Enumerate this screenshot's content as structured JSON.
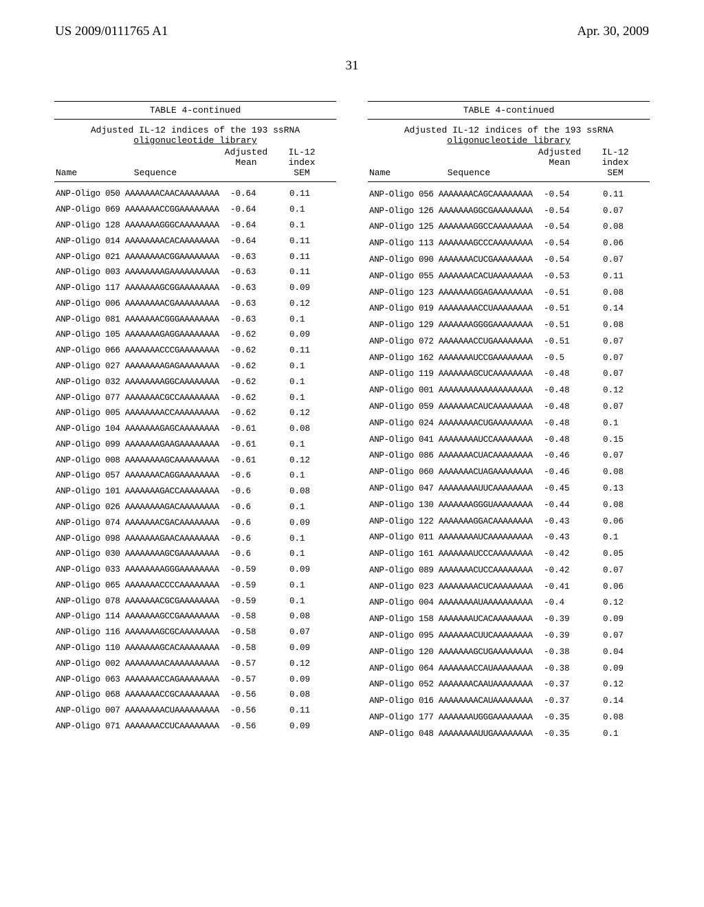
{
  "header": {
    "left": "US 2009/0111765 A1",
    "right": "Apr. 30, 2009",
    "page": "31"
  },
  "table": {
    "title": "TABLE 4-continued",
    "subtitle1": "Adjusted IL-12 indices of the 193 ssRNA",
    "subtitle2": "oligonucleotide library",
    "col_headers": {
      "name": "Name",
      "sequence": "Sequence",
      "adjusted": "Adjusted\nMean",
      "il12": "IL-12\nindex\nSEM"
    }
  },
  "left_rows": [
    {
      "n": "ANP-Oligo 050 AAAAAAACAACAAAAAAAA",
      "a": "-0.64",
      "i": "0.11"
    },
    {
      "n": "ANP-Oligo 069 AAAAAAACCGGAAAAAAAA",
      "a": "-0.64",
      "i": "0.1"
    },
    {
      "n": "ANP-Oligo 128 AAAAAAAGGGCAAAAAAAA",
      "a": "-0.64",
      "i": "0.1"
    },
    {
      "n": "ANP-Oligo 014 AAAAAAAACACAAAAAAAA",
      "a": "-0.64",
      "i": "0.11"
    },
    {
      "n": "ANP-Oligo 021 AAAAAAAACGGAAAAAAAA",
      "a": "-0.63",
      "i": "0.11"
    },
    {
      "n": "ANP-Oligo 003 AAAAAAAAGAAAAAAAAAA",
      "a": "-0.63",
      "i": "0.11"
    },
    {
      "n": "ANP-Oligo 117 AAAAAAAGCGGAAAAAAAA",
      "a": "-0.63",
      "i": "0.09"
    },
    {
      "n": "ANP-Oligo 006 AAAAAAAACGAAAAAAAAA",
      "a": "-0.63",
      "i": "0.12"
    },
    {
      "n": "ANP-Oligo 081 AAAAAAACGGGAAAAAAAA",
      "a": "-0.63",
      "i": "0.1"
    },
    {
      "n": "ANP-Oligo 105 AAAAAAAGAGGAAAAAAAA",
      "a": "-0.62",
      "i": "0.09"
    },
    {
      "n": "ANP-Oligo 066 AAAAAAACCCGAAAAAAAA",
      "a": "-0.62",
      "i": "0.11"
    },
    {
      "n": "ANP-Oligo 027 AAAAAAAAGAGAAAAAAAA",
      "a": "-0.62",
      "i": "0.1"
    },
    {
      "n": "ANP-Oligo 032 AAAAAAAAGGCAAAAAAAA",
      "a": "-0.62",
      "i": "0.1"
    },
    {
      "n": "ANP-Oligo 077 AAAAAAACGCCAAAAAAAA",
      "a": "-0.62",
      "i": "0.1"
    },
    {
      "n": "ANP-Oligo 005 AAAAAAAACCAAAAAAAAA",
      "a": "-0.62",
      "i": "0.12"
    },
    {
      "n": "ANP-Oligo 104 AAAAAAAGAGCAAAAAAAA",
      "a": "-0.61",
      "i": "0.08"
    },
    {
      "n": "ANP-Oligo 099 AAAAAAAGAAGAAAAAAAA",
      "a": "-0.61",
      "i": "0.1"
    },
    {
      "n": "ANP-Oligo 008 AAAAAAAAGCAAAAAAAAA",
      "a": "-0.61",
      "i": "0.12"
    },
    {
      "n": "ANP-Oligo 057 AAAAAAACAGGAAAAAAAA",
      "a": "-0.6",
      "i": "0.1"
    },
    {
      "n": "ANP-Oligo 101 AAAAAAAGACCAAAAAAAA",
      "a": "-0.6",
      "i": "0.08"
    },
    {
      "n": "ANP-Oligo 026 AAAAAAAAGACAAAAAAAA",
      "a": "-0.6",
      "i": "0.1"
    },
    {
      "n": "ANP-Oligo 074 AAAAAAACGACAAAAAAAA",
      "a": "-0.6",
      "i": "0.09"
    },
    {
      "n": "ANP-Oligo 098 AAAAAAAGAACAAAAAAAA",
      "a": "-0.6",
      "i": "0.1"
    },
    {
      "n": "ANP-Oligo 030 AAAAAAAAGCGAAAAAAAA",
      "a": "-0.6",
      "i": "0.1"
    },
    {
      "n": "ANP-Oligo 033 AAAAAAAAGGGAAAAAAAA",
      "a": "-0.59",
      "i": "0.09"
    },
    {
      "n": "ANP-Oligo 065 AAAAAAACCCCAAAAAAAA",
      "a": "-0.59",
      "i": "0.1"
    },
    {
      "n": "ANP-Oligo 078 AAAAAAACGCGAAAAAAAA",
      "a": "-0.59",
      "i": "0.1"
    },
    {
      "n": "ANP-Oligo 114 AAAAAAAGCCGAAAAAAAA",
      "a": "-0.58",
      "i": "0.08"
    },
    {
      "n": "ANP-Oligo 116 AAAAAAAGCGCAAAAAAAA",
      "a": "-0.58",
      "i": "0.07"
    },
    {
      "n": "ANP-Oligo 110 AAAAAAAGCACAAAAAAAA",
      "a": "-0.58",
      "i": "0.09"
    },
    {
      "n": "ANP-Oligo 002 AAAAAAAACAAAAAAAAAA",
      "a": "-0.57",
      "i": "0.12"
    },
    {
      "n": "ANP-Oligo 063 AAAAAAACCAGAAAAAAAA",
      "a": "-0.57",
      "i": "0.09"
    },
    {
      "n": "ANP-Oligo 068 AAAAAAACCGCAAAAAAAA",
      "a": "-0.56",
      "i": "0.08"
    },
    {
      "n": "ANP-Oligo 007 AAAAAAAACUAAAAAAAAA",
      "a": "-0.56",
      "i": "0.11"
    },
    {
      "n": "ANP-Oligo 071 AAAAAAACCUCAAAAAAAA",
      "a": "-0.56",
      "i": "0.09"
    }
  ],
  "right_rows": [
    {
      "n": "ANP-Oligo 056 AAAAAAACAGCAAAAAAAA",
      "a": "-0.54",
      "i": "0.11"
    },
    {
      "n": "ANP-Oligo 126 AAAAAAAGGCGAAAAAAAA",
      "a": "-0.54",
      "i": "0.07"
    },
    {
      "n": "ANP-Oligo 125 AAAAAAAGGCCAAAAAAAA",
      "a": "-0.54",
      "i": "0.08"
    },
    {
      "n": "ANP-Oligo 113 AAAAAAAGCCCAAAAAAAA",
      "a": "-0.54",
      "i": "0.06"
    },
    {
      "n": "ANP-Oligo 090 AAAAAAACUCGAAAAAAAA",
      "a": "-0.54",
      "i": "0.07"
    },
    {
      "n": "ANP-Oligo 055 AAAAAAACACUAAAAAAAA",
      "a": "-0.53",
      "i": "0.11"
    },
    {
      "n": "ANP-Oligo 123 AAAAAAAGGAGAAAAAAAA",
      "a": "-0.51",
      "i": "0.08"
    },
    {
      "n": "ANP-Oligo 019 AAAAAAAACCUAAAAAAAA",
      "a": "-0.51",
      "i": "0.14"
    },
    {
      "n": "ANP-Oligo 129 AAAAAAAGGGGAAAAAAAA",
      "a": "-0.51",
      "i": "0.08"
    },
    {
      "n": "ANP-Oligo 072 AAAAAAACCUGAAAAAAAA",
      "a": "-0.51",
      "i": "0.07"
    },
    {
      "n": "ANP-Oligo 162 AAAAAAAUCCGAAAAAAAA",
      "a": "-0.5",
      "i": "0.07"
    },
    {
      "n": "ANP-Oligo 119 AAAAAAAGCUCAAAAAAAA",
      "a": "-0.48",
      "i": "0.07"
    },
    {
      "n": "ANP-Oligo 001 AAAAAAAAAAAAAAAAAAA",
      "a": "-0.48",
      "i": "0.12"
    },
    {
      "n": "ANP-Oligo 059 AAAAAAACAUCAAAAAAAA",
      "a": "-0.48",
      "i": "0.07"
    },
    {
      "n": "ANP-Oligo 024 AAAAAAAACUGAAAAAAAA",
      "a": "-0.48",
      "i": "0.1"
    },
    {
      "n": "ANP-Oligo 041 AAAAAAAAUCCAAAAAAAA",
      "a": "-0.48",
      "i": "0.15"
    },
    {
      "n": "ANP-Oligo 086 AAAAAAACUACAAAAAAAA",
      "a": "-0.46",
      "i": "0.07"
    },
    {
      "n": "ANP-Oligo 060 AAAAAAACUAGAAAAAAAA",
      "a": "-0.46",
      "i": "0.08"
    },
    {
      "n": "ANP-Oligo 047 AAAAAAAAUUCAAAAAAAA",
      "a": "-0.45",
      "i": "0.13"
    },
    {
      "n": "ANP-Oligo 130 AAAAAAAGGGUAAAAAAAA",
      "a": "-0.44",
      "i": "0.08"
    },
    {
      "n": "ANP-Oligo 122 AAAAAAAGGACAAAAAAAA",
      "a": "-0.43",
      "i": "0.06"
    },
    {
      "n": "ANP-Oligo 011 AAAAAAAAUCAAAAAAAAA",
      "a": "-0.43",
      "i": "0.1"
    },
    {
      "n": "ANP-Oligo 161 AAAAAAAUCCCAAAAAAAA",
      "a": "-0.42",
      "i": "0.05"
    },
    {
      "n": "ANP-Oligo 089 AAAAAAACUCCAAAAAAAA",
      "a": "-0.42",
      "i": "0.07"
    },
    {
      "n": "ANP-Oligo 023 AAAAAAAACUCAAAAAAAA",
      "a": "-0.41",
      "i": "0.06"
    },
    {
      "n": "ANP-Oligo 004 AAAAAAAAUAAAAAAAAAA",
      "a": "-0.4",
      "i": "0.12"
    },
    {
      "n": "ANP-Oligo 158 AAAAAAAUCACAAAAAAAA",
      "a": "-0.39",
      "i": "0.09"
    },
    {
      "n": "ANP-Oligo 095 AAAAAAACUUCAAAAAAAA",
      "a": "-0.39",
      "i": "0.07"
    },
    {
      "n": "ANP-Oligo 120 AAAAAAAGCUGAAAAAAAA",
      "a": "-0.38",
      "i": "0.04"
    },
    {
      "n": "ANP-Oligo 064 AAAAAAACCAUAAAAAAAA",
      "a": "-0.38",
      "i": "0.09"
    },
    {
      "n": "ANP-Oligo 052 AAAAAAACAAUAAAAAAAA",
      "a": "-0.37",
      "i": "0.12"
    },
    {
      "n": "ANP-Oligo 016 AAAAAAAACAUAAAAAAAA",
      "a": "-0.37",
      "i": "0.14"
    },
    {
      "n": "ANP-Oligo 177 AAAAAAAUGGGAAAAAAAA",
      "a": "-0.35",
      "i": "0.08"
    },
    {
      "n": "ANP-Oligo 048 AAAAAAAAUUGAAAAAAAA",
      "a": "-0.35",
      "i": "0.1"
    }
  ]
}
